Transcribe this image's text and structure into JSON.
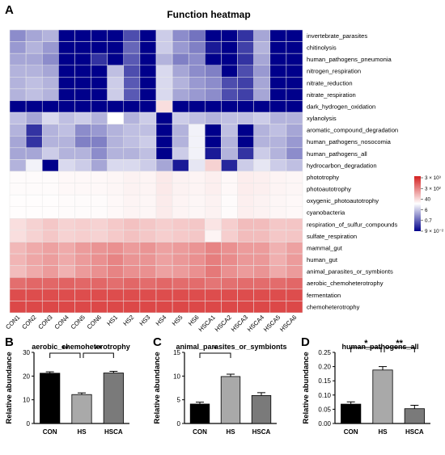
{
  "chart_data": [
    {
      "panel": "A",
      "type": "heatmap",
      "title": "Function heatmap",
      "columns": [
        "CON1",
        "CON2",
        "CON3",
        "CON4",
        "CON5",
        "CON6",
        "HS1",
        "HS2",
        "HS3",
        "HS4",
        "HS5",
        "HS6",
        "HSCA1",
        "HSCA2",
        "HSCA3",
        "HSCA4",
        "HSCA5",
        "HSCA6"
      ],
      "rows": [
        "invertebrate_parasites",
        "chitinolysis",
        "human_pathogens_pneumonia",
        "nitrogen_respiration",
        "nitrate_reduction",
        "nitrate_respiration",
        "dark_hydrogen_oxidation",
        "xylanolysis",
        "aromatic_compound_degradation",
        "human_pathogens_nosocomia",
        "human_pathogens_all",
        "hydrocarbon_degradation",
        "phototrophy",
        "photoautotrophy",
        "oxygenic_photoautotrophy",
        "cyanobacteria",
        "respiration_of_sulfur_compounds",
        "sulfate_respiration",
        "mammal_gut",
        "human_gut",
        "animal_parasites_or_symbionts",
        "aerobic_chemoheterotrophy",
        "fermentation",
        "chemoheterotrophy"
      ],
      "values": [
        [
          -0.45,
          -0.35,
          -0.3,
          -1,
          -1,
          -1,
          -1,
          -0.7,
          -1,
          -0.2,
          -0.45,
          -0.55,
          -1,
          -1,
          -0.8,
          -0.35,
          -1,
          -1
        ],
        [
          -0.4,
          -0.3,
          -0.4,
          -1,
          -1,
          -1,
          -1,
          -0.6,
          -1,
          -0.2,
          -0.4,
          -0.5,
          -0.9,
          -1,
          -0.75,
          -0.3,
          -1,
          -1
        ],
        [
          -0.35,
          -0.35,
          -0.45,
          -1,
          -1,
          -0.8,
          -1,
          -0.65,
          -1,
          -0.3,
          -0.5,
          -0.45,
          -1,
          -1,
          -0.8,
          -0.35,
          -1,
          -1
        ],
        [
          -0.3,
          -0.3,
          -0.35,
          -1,
          -1,
          -1,
          -0.25,
          -0.7,
          -1,
          -0.15,
          -0.35,
          -0.45,
          -0.5,
          -1,
          -0.7,
          -0.4,
          -1,
          -1
        ],
        [
          -0.3,
          -0.25,
          -0.3,
          -1,
          -1,
          -1,
          -0.2,
          -0.65,
          -1,
          -0.15,
          -0.3,
          -0.4,
          -0.45,
          -0.7,
          -0.75,
          -0.35,
          -1,
          -1
        ],
        [
          -0.3,
          -0.25,
          -0.3,
          -1,
          -1,
          -1,
          -0.2,
          -0.65,
          -1,
          -0.15,
          -0.35,
          -0.4,
          -0.45,
          -0.7,
          -0.75,
          -0.35,
          -1,
          -1
        ],
        [
          -1,
          -1,
          -1,
          -1,
          -1,
          -1,
          -1,
          -1,
          -1,
          0.15,
          -1,
          -1,
          -1,
          -1,
          -1,
          -1,
          -1,
          -1
        ],
        [
          -0.25,
          -0.35,
          -0.15,
          -0.25,
          -0.2,
          -0.3,
          0.0,
          -0.3,
          -0.2,
          -1,
          -0.2,
          -0.25,
          -0.3,
          -0.25,
          -0.25,
          -0.2,
          -0.3,
          -0.3
        ],
        [
          -0.3,
          -0.8,
          -0.3,
          -0.25,
          -0.45,
          -0.4,
          -0.3,
          -0.25,
          -0.25,
          -1,
          -0.3,
          -0.05,
          -1,
          -0.25,
          -1,
          -0.3,
          -0.25,
          -0.35
        ],
        [
          -0.35,
          -0.8,
          -0.3,
          -0.3,
          -0.5,
          -0.5,
          -0.3,
          -0.25,
          -0.2,
          -1,
          -0.3,
          -0.05,
          -1,
          -0.3,
          -1,
          -0.3,
          -0.3,
          -0.4
        ],
        [
          -0.35,
          -0.35,
          -0.2,
          -0.3,
          -0.3,
          -0.45,
          -0.3,
          -0.3,
          -0.25,
          -1,
          -0.2,
          -0.05,
          -0.9,
          -0.3,
          -0.8,
          -0.2,
          -0.3,
          -0.45
        ],
        [
          -0.3,
          -0.05,
          -1,
          -0.15,
          -0.2,
          -0.35,
          -0.15,
          -0.15,
          -0.2,
          -0.35,
          -0.9,
          -0.1,
          0.2,
          -0.85,
          -0.2,
          -0.1,
          -0.2,
          -0.25
        ],
        [
          0.02,
          0.02,
          0.02,
          0.03,
          0.03,
          0.03,
          0.04,
          0.06,
          0.05,
          0.1,
          0.06,
          0.05,
          0.07,
          0.03,
          0.08,
          0.07,
          0.05,
          0.04
        ],
        [
          0.02,
          0.02,
          0.02,
          0.03,
          0.03,
          0.03,
          0.04,
          0.06,
          0.05,
          0.1,
          0.06,
          0.05,
          0.07,
          0.03,
          0.08,
          0.07,
          0.05,
          0.04
        ],
        [
          0.01,
          0.01,
          0.01,
          0.02,
          0.02,
          0.02,
          0.03,
          0.05,
          0.04,
          0.09,
          0.05,
          0.04,
          0.06,
          0.02,
          0.07,
          0.06,
          0.04,
          0.03
        ],
        [
          0.01,
          0.01,
          0.01,
          0.02,
          0.02,
          0.02,
          0.03,
          0.05,
          0.04,
          0.09,
          0.05,
          0.04,
          0.06,
          0.02,
          0.07,
          0.06,
          0.04,
          0.03
        ],
        [
          0.15,
          0.2,
          0.25,
          0.2,
          0.22,
          0.2,
          0.24,
          0.28,
          0.25,
          0.22,
          0.24,
          0.25,
          0.12,
          0.22,
          0.3,
          0.3,
          0.25,
          0.26
        ],
        [
          0.15,
          0.2,
          0.25,
          0.2,
          0.22,
          0.2,
          0.24,
          0.28,
          0.25,
          0.22,
          0.24,
          0.25,
          0.05,
          0.22,
          0.3,
          0.3,
          0.25,
          0.26
        ],
        [
          0.32,
          0.38,
          0.42,
          0.38,
          0.45,
          0.48,
          0.5,
          0.45,
          0.48,
          0.42,
          0.45,
          0.48,
          0.55,
          0.5,
          0.45,
          0.45,
          0.35,
          0.42
        ],
        [
          0.33,
          0.4,
          0.44,
          0.38,
          0.45,
          0.5,
          0.55,
          0.48,
          0.48,
          0.42,
          0.46,
          0.5,
          0.58,
          0.52,
          0.46,
          0.46,
          0.36,
          0.45
        ],
        [
          0.3,
          0.38,
          0.45,
          0.35,
          0.45,
          0.5,
          0.55,
          0.5,
          0.5,
          0.42,
          0.45,
          0.5,
          0.6,
          0.5,
          0.45,
          0.48,
          0.38,
          0.45
        ],
        [
          0.65,
          0.68,
          0.68,
          0.7,
          0.68,
          0.68,
          0.65,
          0.68,
          0.66,
          0.68,
          0.66,
          0.66,
          0.62,
          0.64,
          0.66,
          0.66,
          0.66,
          0.68
        ],
        [
          0.8,
          0.8,
          0.8,
          0.8,
          0.8,
          0.8,
          0.8,
          0.8,
          0.8,
          0.8,
          0.8,
          0.8,
          0.8,
          0.8,
          0.8,
          0.8,
          0.8,
          0.8
        ],
        [
          0.82,
          0.82,
          0.82,
          0.82,
          0.82,
          0.82,
          0.82,
          0.82,
          0.82,
          0.82,
          0.82,
          0.82,
          0.82,
          0.82,
          0.82,
          0.82,
          0.82,
          0.82
        ]
      ],
      "color_scale": {
        "low": "#00008b",
        "mid": "#ffffff",
        "high": "#d42020"
      },
      "legend": {
        "placement": "right",
        "labels": [
          "3 × 10³",
          "3 × 10²",
          "40",
          "6",
          "0.7",
          "9 × 10⁻²"
        ]
      }
    },
    {
      "panel": "B",
      "type": "bar",
      "title": "aerobic_chemoheterotrophy",
      "categories": [
        "CON",
        "HS",
        "HSCA"
      ],
      "values": [
        21.2,
        12.2,
        21.3
      ],
      "errors": [
        0.6,
        0.7,
        0.7
      ],
      "colors": [
        "#000000",
        "#a9a9a9",
        "#7a7a7a"
      ],
      "ylabel": "Relative abundance",
      "ylim": [
        0,
        30
      ],
      "yticks": [
        "0",
        "10",
        "20",
        "30"
      ],
      "significance": [
        {
          "between": [
            "CON",
            "HS"
          ],
          "label": "**"
        },
        {
          "between": [
            "HS",
            "HSCA"
          ],
          "label": "**"
        }
      ]
    },
    {
      "panel": "C",
      "type": "bar",
      "title": "animal_parasites_or_symbionts",
      "categories": [
        "CON",
        "HS",
        "HSCA"
      ],
      "values": [
        4.1,
        9.9,
        5.9
      ],
      "errors": [
        0.4,
        0.5,
        0.6
      ],
      "colors": [
        "#000000",
        "#a9a9a9",
        "#7a7a7a"
      ],
      "ylabel": "Relative abundance",
      "ylim": [
        0,
        15
      ],
      "yticks": [
        "0",
        "5",
        "10",
        "15"
      ],
      "significance": [
        {
          "between": [
            "CON",
            "HS"
          ],
          "label": "*"
        }
      ]
    },
    {
      "panel": "D",
      "type": "bar",
      "title": "human_pathogens_all",
      "categories": [
        "CON",
        "HS",
        "HSCA"
      ],
      "values": [
        0.068,
        0.188,
        0.052
      ],
      "errors": [
        0.008,
        0.012,
        0.012
      ],
      "colors": [
        "#000000",
        "#a9a9a9",
        "#7a7a7a"
      ],
      "ylabel": "Relative abundance",
      "ylim": [
        0,
        0.25
      ],
      "yticks": [
        "0.00",
        "0.05",
        "0.10",
        "0.15",
        "0.20",
        "0.25"
      ],
      "significance": [
        {
          "between": [
            "CON",
            "HS"
          ],
          "label": "*"
        },
        {
          "between": [
            "HS",
            "HSCA"
          ],
          "label": "**"
        }
      ]
    }
  ]
}
